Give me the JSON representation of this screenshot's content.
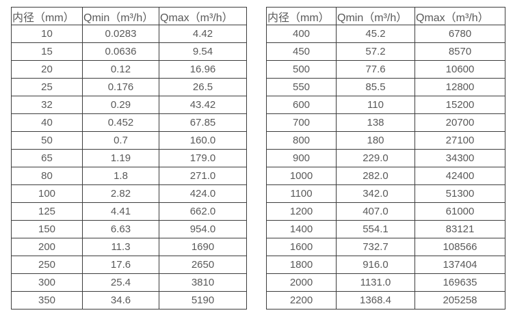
{
  "page": {
    "background_color": "#ffffff",
    "text_color": "#595959",
    "border_color": "#3c3c3c"
  },
  "chart_data": [
    {
      "type": "table",
      "name": "flow-rate-table-small-diameters",
      "columns": [
        "内径（mm）",
        "Qmin（m³/h）",
        "Qmax（m³/h）"
      ],
      "rows": [
        [
          "10",
          "0.0283",
          "4.42"
        ],
        [
          "15",
          "0.0636",
          "9.54"
        ],
        [
          "20",
          "0.12",
          "16.96"
        ],
        [
          "25",
          "0.176",
          "26.5"
        ],
        [
          "32",
          "0.29",
          "43.42"
        ],
        [
          "40",
          "0.452",
          "67.85"
        ],
        [
          "50",
          "0.7",
          "160.0"
        ],
        [
          "65",
          "1.19",
          "179.0"
        ],
        [
          "80",
          "1.8",
          "271.0"
        ],
        [
          "100",
          "2.82",
          "424.0"
        ],
        [
          "125",
          "4.41",
          "662.0"
        ],
        [
          "150",
          "6.63",
          "954.0"
        ],
        [
          "200",
          "11.3",
          "1690"
        ],
        [
          "250",
          "17.6",
          "2650"
        ],
        [
          "300",
          "25.4",
          "3810"
        ],
        [
          "350",
          "34.6",
          "5190"
        ]
      ]
    },
    {
      "type": "table",
      "name": "flow-rate-table-large-diameters",
      "columns": [
        "内径（mm）",
        "Qmin（m³/h）",
        "Qmax（m³/h）"
      ],
      "rows": [
        [
          "400",
          "45.2",
          "6780"
        ],
        [
          "450",
          "57.2",
          "8570"
        ],
        [
          "500",
          "77.6",
          "10600"
        ],
        [
          "550",
          "85.5",
          "12800"
        ],
        [
          "600",
          "110",
          "15200"
        ],
        [
          "700",
          "138",
          "20700"
        ],
        [
          "800",
          "180",
          "27100"
        ],
        [
          "900",
          "229.0",
          "34300"
        ],
        [
          "1000",
          "282.0",
          "42400"
        ],
        [
          "1100",
          "342.0",
          "51300"
        ],
        [
          "1200",
          "407.0",
          "61000"
        ],
        [
          "1400",
          "554.1",
          "83121"
        ],
        [
          "1600",
          "732.7",
          "108566"
        ],
        [
          "1800",
          "916.0",
          "137404"
        ],
        [
          "2000",
          "1131.0",
          "169635"
        ],
        [
          "2200",
          "1368.4",
          "205258"
        ]
      ]
    }
  ]
}
